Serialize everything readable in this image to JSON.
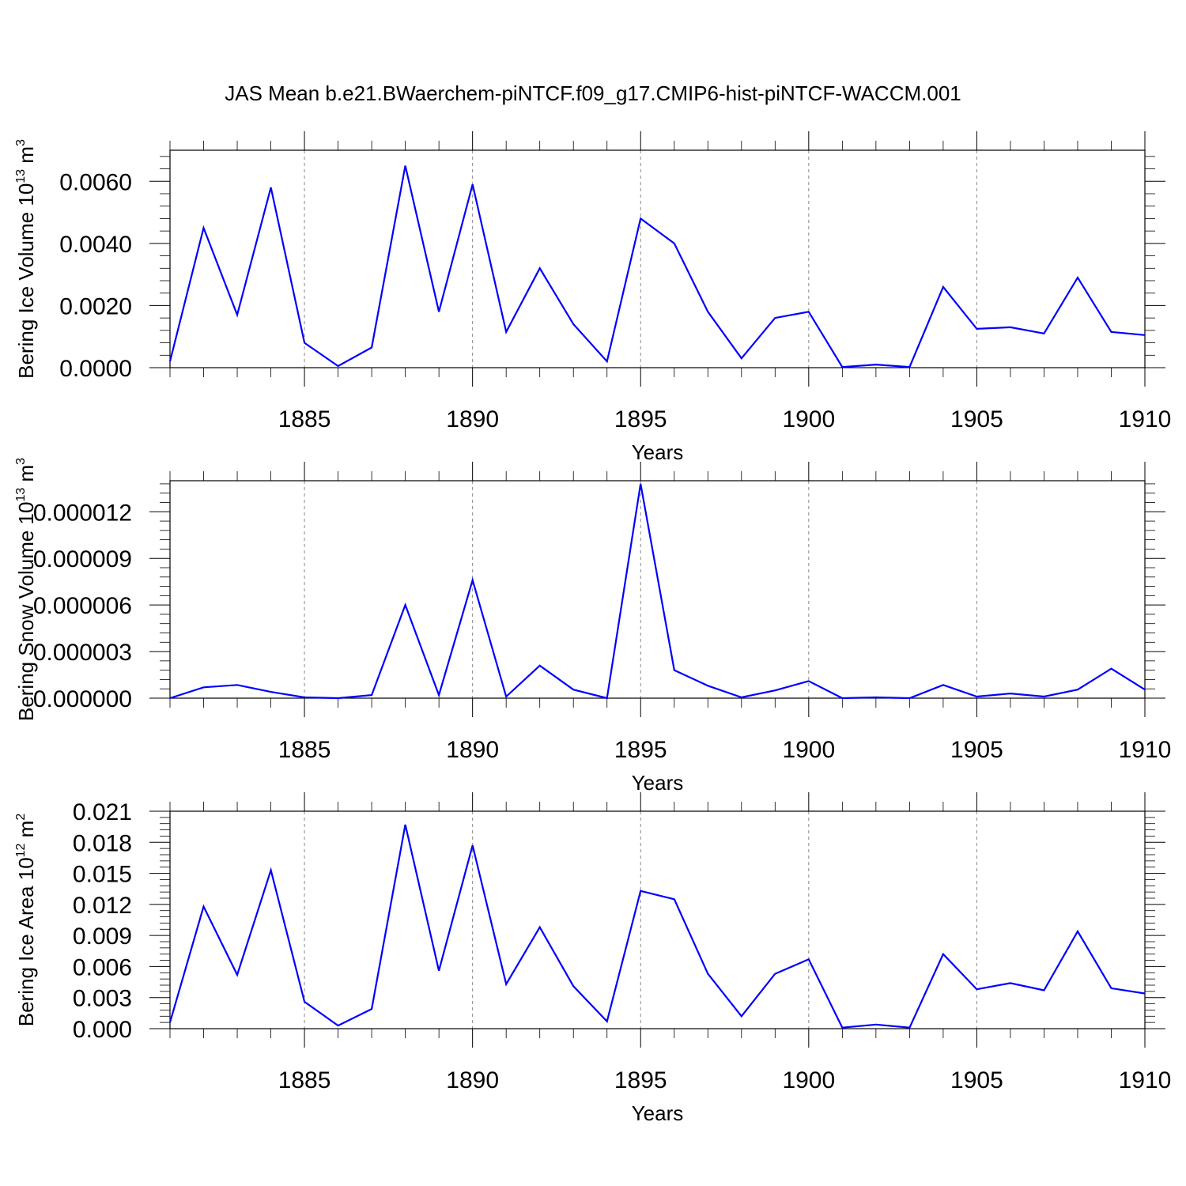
{
  "title": "JAS Mean b.e21.BWaerchem-piNTCF.f09_g17.CMIP6-hist-piNTCF-WACCM.001",
  "chart_data": [
    {
      "type": "line",
      "title": "",
      "ylabel": "Bering Ice Volume 10",
      "ylabel_exp": "13",
      "ylabel_unit": " m",
      "ylabel_unit_exp": "3",
      "xlabel": "Years",
      "xlim": [
        1881,
        1910
      ],
      "ylim": [
        0,
        0.007
      ],
      "yticks": [
        "0.0000",
        "0.0020",
        "0.0040",
        "0.0060"
      ],
      "ytick_values": [
        0,
        0.002,
        0.004,
        0.006
      ],
      "xticks": [
        "1885",
        "1890",
        "1895",
        "1900",
        "1905",
        "1910"
      ],
      "xtick_values": [
        1885,
        1890,
        1895,
        1900,
        1905,
        1910
      ],
      "grid": "x dashed at major ticks",
      "series": [
        {
          "color": "#0000ff",
          "x": [
            1881,
            1882,
            1883,
            1884,
            1885,
            1886,
            1887,
            1888,
            1889,
            1890,
            1891,
            1892,
            1893,
            1894,
            1895,
            1896,
            1897,
            1898,
            1899,
            1900,
            1901,
            1902,
            1903,
            1904,
            1905,
            1906,
            1907,
            1908,
            1909,
            1910
          ],
          "values": [
            0.0002,
            0.0045,
            0.0017,
            0.0058,
            0.0008,
            5e-05,
            0.00065,
            0.0065,
            0.0018,
            0.0059,
            0.00115,
            0.0032,
            0.0014,
            0.0002,
            0.0048,
            0.004,
            0.0018,
            0.0003,
            0.0016,
            0.0018,
            2e-05,
            0.0001,
            2e-05,
            0.0026,
            0.00125,
            0.0013,
            0.0011,
            0.0029,
            0.00115,
            0.00105
          ]
        }
      ]
    },
    {
      "type": "line",
      "title": "",
      "ylabel": "Bering Snow Volume 10",
      "ylabel_exp": "13",
      "ylabel_unit": " m",
      "ylabel_unit_exp": "3",
      "xlabel": "Years",
      "xlim": [
        1881,
        1910
      ],
      "ylim": [
        0,
        1.4e-05
      ],
      "yticks": [
        "0.000000",
        "0.000003",
        "0.000006",
        "0.000009",
        "0.000012"
      ],
      "ytick_values": [
        0,
        3e-06,
        6e-06,
        9e-06,
        1.2e-05
      ],
      "xticks": [
        "1885",
        "1890",
        "1895",
        "1900",
        "1905",
        "1910"
      ],
      "xtick_values": [
        1885,
        1890,
        1895,
        1900,
        1905,
        1910
      ],
      "grid": "x dashed at major ticks",
      "series": [
        {
          "color": "#0000ff",
          "x": [
            1881,
            1882,
            1883,
            1884,
            1885,
            1886,
            1887,
            1888,
            1889,
            1890,
            1891,
            1892,
            1893,
            1894,
            1895,
            1896,
            1897,
            1898,
            1899,
            1900,
            1901,
            1902,
            1903,
            1904,
            1905,
            1906,
            1907,
            1908,
            1909,
            1910
          ],
          "values": [
            0.0,
            7e-07,
            8.5e-07,
            4e-07,
            5e-08,
            0.0,
            2e-07,
            6e-06,
            2e-07,
            7.6e-06,
            1e-07,
            2.1e-06,
            5.5e-07,
            0.0,
            1.38e-05,
            1.8e-06,
            8e-07,
            5e-08,
            5e-07,
            1.1e-06,
            0.0,
            5e-08,
            0.0,
            8.5e-07,
            1e-07,
            3e-07,
            1e-07,
            5.5e-07,
            1.9e-06,
            5.5e-07
          ]
        }
      ]
    },
    {
      "type": "line",
      "title": "",
      "ylabel": "Bering Ice Area 10",
      "ylabel_exp": "12",
      "ylabel_unit": " m",
      "ylabel_unit_exp": "2",
      "xlabel": "Years",
      "xlim": [
        1881,
        1910
      ],
      "ylim": [
        0,
        0.021
      ],
      "yticks": [
        "0.000",
        "0.003",
        "0.006",
        "0.009",
        "0.012",
        "0.015",
        "0.018",
        "0.021"
      ],
      "ytick_values": [
        0,
        0.003,
        0.006,
        0.009,
        0.012,
        0.015,
        0.018,
        0.021
      ],
      "xticks": [
        "1885",
        "1890",
        "1895",
        "1900",
        "1905",
        "1910"
      ],
      "xtick_values": [
        1885,
        1890,
        1895,
        1900,
        1905,
        1910
      ],
      "grid": "x dashed at major ticks",
      "series": [
        {
          "color": "#0000ff",
          "x": [
            1881,
            1882,
            1883,
            1884,
            1885,
            1886,
            1887,
            1888,
            1889,
            1890,
            1891,
            1892,
            1893,
            1894,
            1895,
            1896,
            1897,
            1898,
            1899,
            1900,
            1901,
            1902,
            1903,
            1904,
            1905,
            1906,
            1907,
            1908,
            1909,
            1910
          ],
          "values": [
            0.0006,
            0.0118,
            0.0052,
            0.0153,
            0.0026,
            0.0003,
            0.0019,
            0.0197,
            0.0056,
            0.0177,
            0.0043,
            0.0098,
            0.0041,
            0.0007,
            0.0133,
            0.0125,
            0.0053,
            0.0012,
            0.0053,
            0.0067,
            0.0001,
            0.0004,
            0.0001,
            0.0072,
            0.0038,
            0.0044,
            0.0037,
            0.0094,
            0.0039,
            0.0034
          ]
        }
      ]
    }
  ]
}
